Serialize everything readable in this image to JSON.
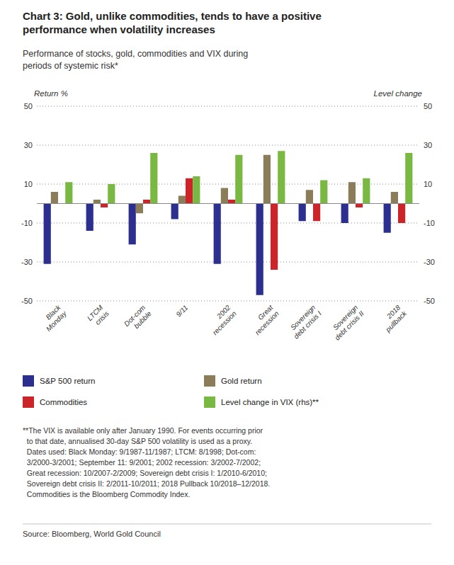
{
  "chart_data": {
    "type": "bar",
    "title": "Chart 3: Gold, unlike commodities, tends to have a positive\nperformance when volatility increases",
    "subtitle": "Performance of stocks, gold, commodities and VIX during\nperiods of systemic risk*",
    "y_label": "Return %",
    "y2_label": "Level change",
    "categories": [
      "Black\nMonday",
      "LTCM\ncrisis",
      "Dot-com\nbubble",
      "9/11",
      "2002\nrecession",
      "Great\nrecession",
      "Sovereign\ndebt crisis I",
      "Sovereign\ndebt crisis II",
      "2018\npullback"
    ],
    "series": [
      {
        "name": "S&P 500 return",
        "color": "#2d2f8f",
        "values": [
          -31,
          -14,
          -21,
          -8,
          -31,
          -47,
          -9,
          -10,
          -15
        ]
      },
      {
        "name": "Gold return",
        "color": "#8b7d5a",
        "values": [
          6,
          2,
          -5,
          4,
          8,
          25,
          7,
          11,
          6
        ]
      },
      {
        "name": "Commodities",
        "color": "#cc2529",
        "values": [
          0,
          -2,
          2,
          13,
          2,
          -34,
          -9,
          -2,
          -10
        ]
      },
      {
        "name": "Level change in VIX (rhs)**",
        "color": "#79b843",
        "axis": "y2",
        "values": [
          11,
          10,
          26,
          14,
          25,
          27,
          12,
          13,
          26
        ]
      }
    ],
    "ylim": [
      -50,
      50
    ],
    "yticks": [
      -50,
      -30,
      -10,
      10,
      30,
      50
    ],
    "y2lim": [
      -50,
      50
    ],
    "y2ticks": [
      -50,
      -30,
      -10,
      10,
      30,
      50
    ],
    "grid": true,
    "legend": "bottom",
    "footnote": "**The VIX is available only after January 1990. For events occurring prior\n  to that date, annualised 30-day S&P 500 volatility is used as a proxy.\n  Dates used: Black Monday: 9/1987-11/1987; LTCM: 8/1998; Dot-com:\n  3/2000-3/2001; September 11: 9/2001; 2002 recession: 3/2002-7/2002;\n  Great recession: 10/2007-2/2009; Sovereign debt crisis I: 1/2010-6/2010;\n  Sovereign debt crisis II: 2/2011-10/2011; 2018 Pullback 10/2018–12/2018.\n  Commodities is the Bloomberg Commodity Index.",
    "source": "Source: Bloomberg, World Gold Council"
  }
}
